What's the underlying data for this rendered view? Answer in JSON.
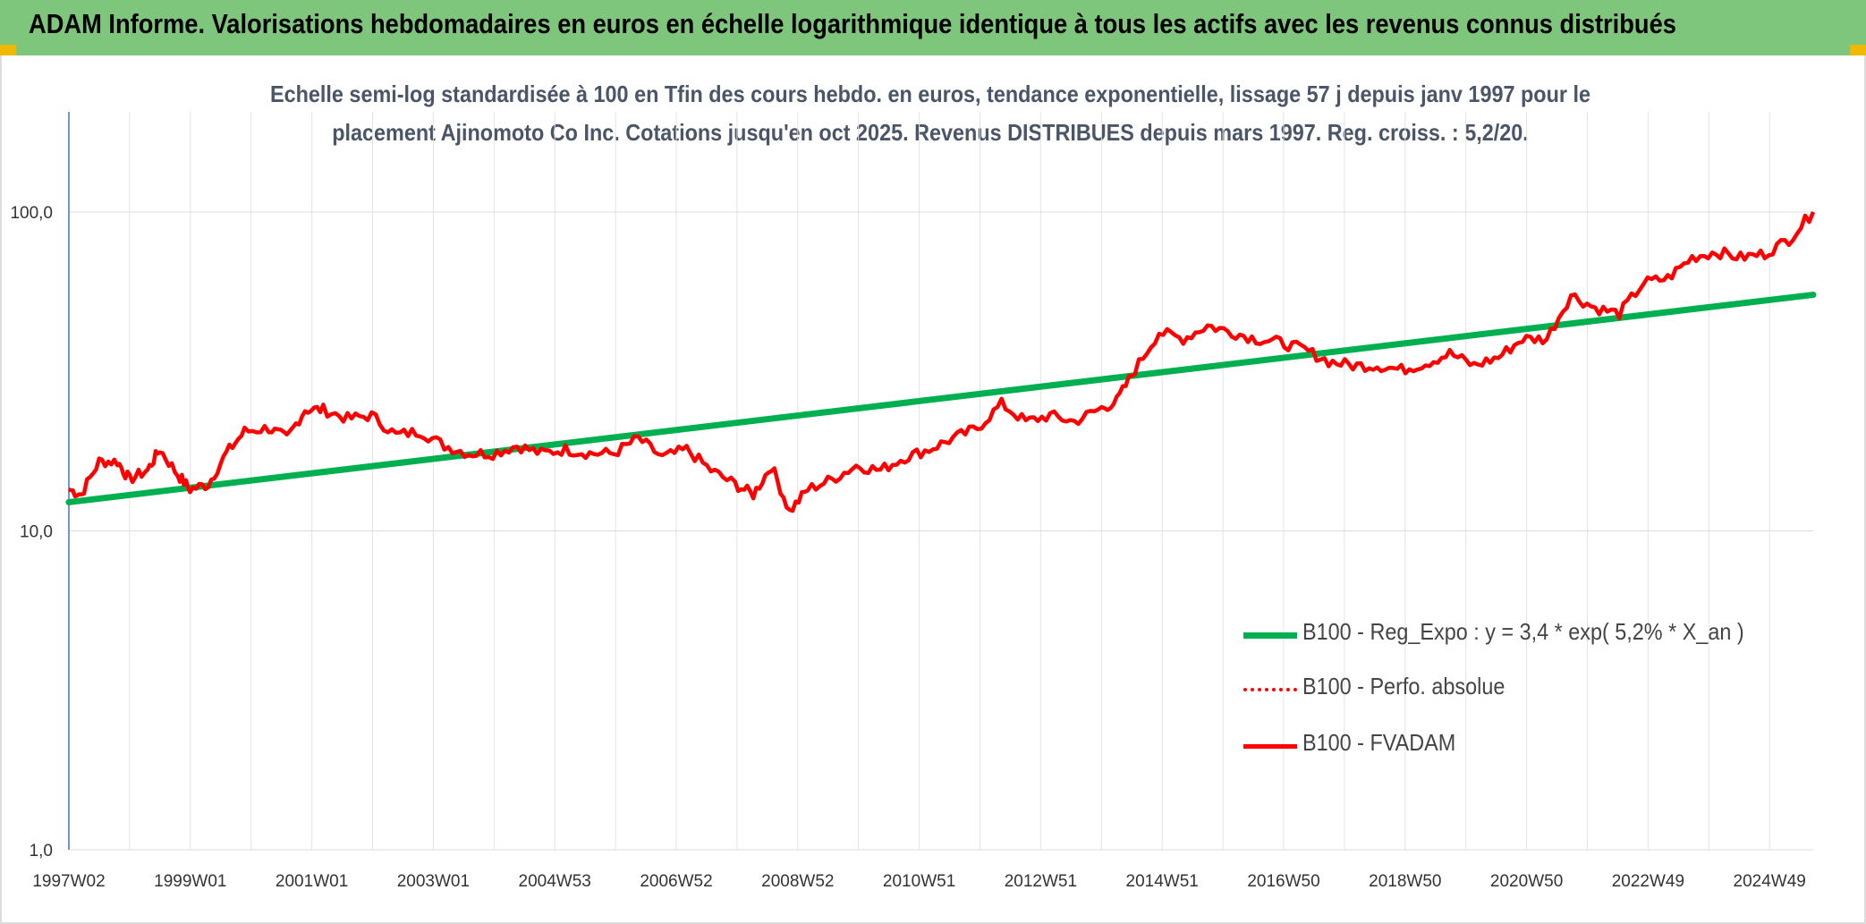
{
  "header": {
    "title": "ADAM Informe. Valorisations hebdomadaires en euros en échelle logarithmique identique à tous les actifs avec les revenus connus distribués"
  },
  "chart_data": {
    "type": "line",
    "subtitle_line1": "Echelle semi-log standardisée à 100 en Tfin des cours hebdo. en euros, tendance exponentielle, lissage 57 j depuis janv 1997 pour le",
    "subtitle_line2": "placement Ajinomoto Co Inc. Cotations jusqu'en oct 2025. Revenus DISTRIBUES depuis mars 1997. Reg. croiss. : 5,2/20.",
    "y_scale": "log",
    "ylim": [
      1,
      100
    ],
    "y_ticks": [
      "1,0",
      "10,0",
      "100,0"
    ],
    "x_ticks": [
      "1997W02",
      "1999W01",
      "2001W01",
      "2003W01",
      "2004W53",
      "2006W52",
      "2008W52",
      "2010W51",
      "2012W51",
      "2014W51",
      "2016W50",
      "2018W50",
      "2020W50",
      "2022W49",
      "2024W49"
    ],
    "xlim": [
      1997.0,
      2025.8
    ],
    "grid": "vertical",
    "legend_position": "bottom-right",
    "colors": {
      "regression": "#00b050",
      "absolute": "#ff0000",
      "fvadam": "#ff0000"
    },
    "series": [
      {
        "name": "B100 - Reg_Expo : y = 3,4 * exp( 5,2% *  X_an )",
        "style": "solid-thick",
        "x": [
          1997.0,
          2025.8
        ],
        "y": [
          12.3,
          55.0
        ]
      },
      {
        "name": "B100 - Perfo. absolue",
        "style": "dotted",
        "x": [],
        "y": []
      },
      {
        "name": "B100 - FVADAM",
        "style": "solid",
        "x": [
          1997.0,
          1997.2,
          1997.5,
          1997.8,
          1998.0,
          1998.3,
          1998.5,
          1998.8,
          1999.0,
          1999.3,
          1999.6,
          1999.9,
          2000.3,
          2000.6,
          2000.9,
          2001.2,
          2001.6,
          2002.0,
          2002.4,
          2002.8,
          2003.2,
          2003.6,
          2004.0,
          2004.4,
          2004.8,
          2005.2,
          2005.6,
          2006.0,
          2006.4,
          2006.8,
          2007.2,
          2007.6,
          2008.0,
          2008.3,
          2008.6,
          2008.9,
          2009.2,
          2009.6,
          2010.0,
          2010.4,
          2010.8,
          2011.2,
          2011.6,
          2012.0,
          2012.4,
          2012.8,
          2013.2,
          2013.6,
          2014.0,
          2014.3,
          2014.6,
          2015.0,
          2015.4,
          2015.8,
          2016.2,
          2016.6,
          2017.0,
          2017.4,
          2017.8,
          2018.2,
          2018.6,
          2019.0,
          2019.4,
          2019.8,
          2020.2,
          2020.6,
          2021.0,
          2021.4,
          2021.8,
          2022.2,
          2022.6,
          2023.0,
          2023.4,
          2023.8,
          2024.2,
          2024.6,
          2025.0,
          2025.4,
          2025.8
        ],
        "y": [
          13.5,
          13.0,
          16.5,
          16.5,
          14.5,
          15.5,
          18.0,
          15.0,
          13.5,
          14.0,
          17.5,
          20.5,
          21.0,
          19.5,
          24.0,
          24.0,
          22.5,
          23.0,
          20.0,
          20.5,
          18.5,
          17.5,
          17.5,
          18.5,
          17.5,
          18.0,
          17.5,
          17.5,
          19.5,
          17.0,
          18.0,
          15.5,
          14.0,
          13.0,
          16.0,
          11.5,
          13.5,
          14.5,
          16.0,
          15.5,
          17.0,
          18.0,
          19.5,
          21.0,
          25.0,
          22.0,
          23.0,
          22.0,
          24.0,
          25.5,
          32.0,
          42.0,
          40.0,
          44.0,
          42.0,
          40.0,
          39.0,
          37.0,
          34.0,
          33.0,
          33.0,
          32.0,
          33.5,
          36.0,
          33.0,
          35.0,
          40.0,
          40.0,
          55.0,
          50.0,
          48.0,
          60.0,
          62.0,
          72.0,
          75.0,
          72.0,
          74.0,
          82.0,
          100.0
        ]
      }
    ]
  }
}
